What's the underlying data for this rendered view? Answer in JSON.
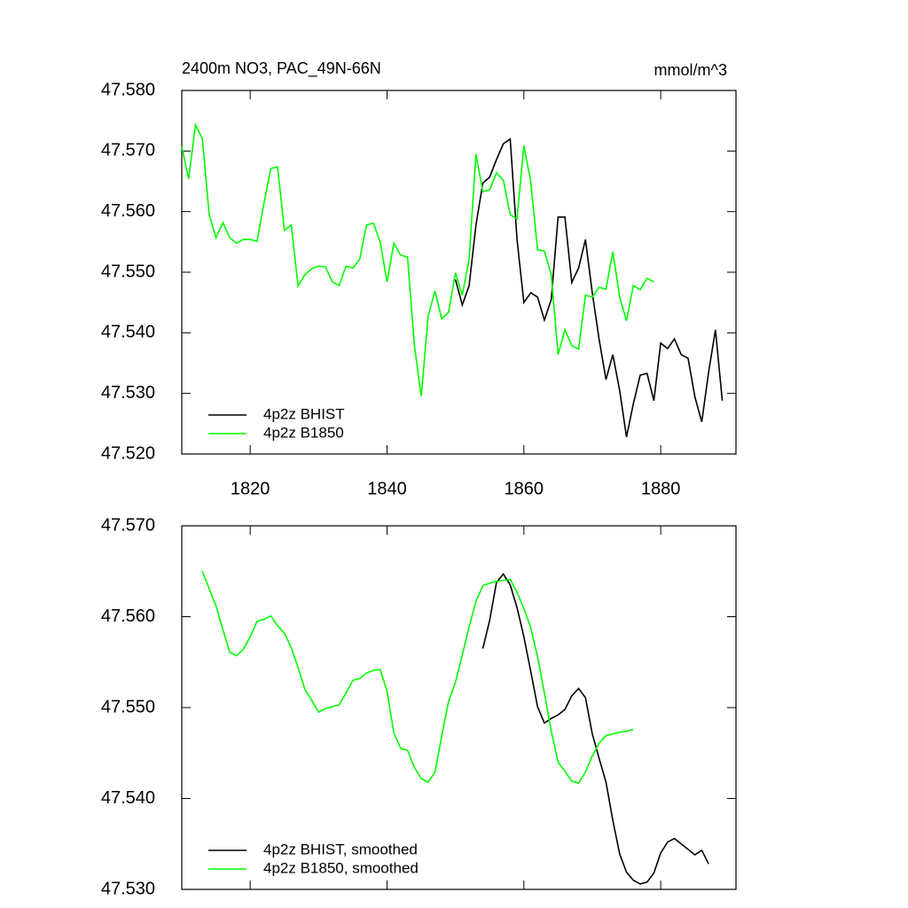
{
  "chart_data": [
    {
      "type": "line",
      "title": "2400m NO3, PAC_49N-66N",
      "units": "mmol/m^3",
      "legend": "lower left",
      "x": [
        1810,
        1811,
        1812,
        1813,
        1814,
        1815,
        1816,
        1817,
        1818,
        1819,
        1820,
        1821,
        1822,
        1823,
        1824,
        1825,
        1826,
        1827,
        1828,
        1829,
        1830,
        1831,
        1832,
        1833,
        1834,
        1835,
        1836,
        1837,
        1838,
        1839,
        1840,
        1841,
        1842,
        1843,
        1844,
        1845,
        1846,
        1847,
        1848,
        1849,
        1850,
        1851,
        1852,
        1853,
        1854,
        1855,
        1856,
        1857,
        1858,
        1859,
        1860,
        1861,
        1862,
        1863,
        1864,
        1865,
        1866,
        1867,
        1868,
        1869,
        1870,
        1871,
        1872,
        1873,
        1874,
        1875,
        1876,
        1877,
        1878,
        1879,
        1880,
        1881,
        1882,
        1883,
        1884,
        1885,
        1886,
        1887,
        1888,
        1889
      ],
      "xlim": [
        1810,
        1891
      ],
      "xticks": [
        1820,
        1840,
        1860,
        1880
      ],
      "ylim": [
        47.52,
        47.58
      ],
      "yticks": [
        {
          "value": 47.52,
          "label": "47.520"
        },
        {
          "value": 47.53,
          "label": "47.530"
        },
        {
          "value": 47.54,
          "label": "47.540"
        },
        {
          "value": 47.55,
          "label": "47.550"
        },
        {
          "value": 47.56,
          "label": "47.560"
        },
        {
          "value": 47.57,
          "label": "47.570"
        },
        {
          "value": 47.58,
          "label": "47.580"
        }
      ],
      "series": [
        {
          "name": "4p2z BHIST",
          "color": "#000000",
          "values": [
            null,
            null,
            null,
            null,
            null,
            null,
            null,
            null,
            null,
            null,
            null,
            null,
            null,
            null,
            null,
            null,
            null,
            null,
            null,
            null,
            null,
            null,
            null,
            null,
            null,
            null,
            null,
            null,
            null,
            null,
            null,
            null,
            null,
            null,
            null,
            null,
            null,
            null,
            null,
            null,
            47.5488,
            47.5446,
            47.5478,
            47.5578,
            47.5647,
            47.5657,
            47.5686,
            47.5712,
            47.572,
            47.5554,
            47.545,
            47.5466,
            47.5459,
            47.5421,
            47.5455,
            47.5591,
            47.5591,
            47.5483,
            47.5507,
            47.5554,
            47.5466,
            47.5389,
            47.5323,
            47.5364,
            47.5305,
            47.5228,
            47.5283,
            47.533,
            47.5333,
            47.5288,
            47.5383,
            47.5374,
            47.539,
            47.5364,
            47.5358,
            47.5294,
            47.5253,
            47.5335,
            47.5405,
            47.5288
          ]
        },
        {
          "name": "4p2z B1850",
          "color": "#00ff00",
          "values": [
            47.5707,
            47.5654,
            47.5743,
            47.5721,
            47.5595,
            47.5557,
            47.5582,
            47.5557,
            47.5548,
            47.5554,
            47.5554,
            47.5551,
            47.5613,
            47.5671,
            47.5674,
            47.5569,
            47.5578,
            47.5477,
            47.5496,
            47.5506,
            47.551,
            47.5509,
            47.5484,
            47.5478,
            47.551,
            47.5507,
            47.5521,
            47.5578,
            47.5581,
            47.555,
            47.5484,
            47.5548,
            47.5528,
            47.5525,
            47.5379,
            47.5295,
            47.5427,
            47.5469,
            47.5423,
            47.5434,
            47.5499,
            47.5462,
            47.5522,
            47.5695,
            47.5633,
            47.5636,
            47.5664,
            47.5652,
            47.5595,
            47.5588,
            47.5709,
            47.565,
            47.5537,
            47.5535,
            47.5496,
            47.5364,
            47.5405,
            47.5379,
            47.5373,
            47.5462,
            47.5459,
            47.5475,
            47.5472,
            47.5534,
            47.5459,
            47.542,
            47.5478,
            47.5471,
            47.549,
            47.5484,
            null,
            null,
            null,
            null,
            null,
            null,
            null,
            null,
            null,
            null
          ]
        }
      ]
    },
    {
      "type": "line",
      "legend": "lower left",
      "x": [
        1813,
        1814,
        1815,
        1816,
        1817,
        1818,
        1819,
        1820,
        1821,
        1822,
        1823,
        1824,
        1825,
        1826,
        1827,
        1828,
        1829,
        1830,
        1831,
        1832,
        1833,
        1834,
        1835,
        1836,
        1837,
        1838,
        1839,
        1840,
        1841,
        1842,
        1843,
        1844,
        1845,
        1846,
        1847,
        1848,
        1849,
        1850,
        1851,
        1852,
        1853,
        1854,
        1855,
        1856,
        1857,
        1858,
        1859,
        1860,
        1861,
        1862,
        1863,
        1864,
        1865,
        1866,
        1867,
        1868,
        1869,
        1870,
        1871,
        1872,
        1873,
        1874,
        1875,
        1876,
        1877,
        1878,
        1879,
        1880,
        1881,
        1882,
        1883,
        1884,
        1885,
        1886,
        1887
      ],
      "xlim": [
        1810,
        1891
      ],
      "xticks": [
        1820,
        1840,
        1860,
        1880
      ],
      "ylim": [
        47.53,
        47.57
      ],
      "yticks": [
        {
          "value": 47.53,
          "label": "47.530"
        },
        {
          "value": 47.54,
          "label": "47.540"
        },
        {
          "value": 47.55,
          "label": "47.550"
        },
        {
          "value": 47.56,
          "label": "47.560"
        },
        {
          "value": 47.57,
          "label": "47.570"
        }
      ],
      "series": [
        {
          "name": "4p2z BHIST, smoothed",
          "color": "#000000",
          "values": [
            null,
            null,
            null,
            null,
            null,
            null,
            null,
            null,
            null,
            null,
            null,
            null,
            null,
            null,
            null,
            null,
            null,
            null,
            null,
            null,
            null,
            null,
            null,
            null,
            null,
            null,
            null,
            null,
            null,
            null,
            null,
            null,
            null,
            null,
            null,
            null,
            null,
            null,
            null,
            null,
            null,
            47.5565,
            47.5596,
            47.5638,
            47.5647,
            47.5635,
            47.561,
            47.5578,
            47.554,
            47.5501,
            47.5483,
            47.5488,
            47.5492,
            47.5498,
            47.5513,
            47.5521,
            47.5511,
            47.5471,
            47.5444,
            47.5418,
            47.5376,
            47.5339,
            47.5319,
            47.531,
            47.5306,
            47.5308,
            47.5318,
            47.534,
            47.5352,
            47.5356,
            47.535,
            47.5344,
            47.5338,
            47.5343,
            47.5328
          ]
        },
        {
          "name": "4p2z B1850, smoothed",
          "color": "#00ff00",
          "values": [
            47.565,
            47.5631,
            47.5612,
            47.5586,
            47.5561,
            47.5557,
            47.5564,
            47.5578,
            47.5595,
            47.5597,
            47.5601,
            47.559,
            47.5582,
            47.5566,
            47.5544,
            47.552,
            47.5508,
            47.5495,
            47.5499,
            47.5501,
            47.5503,
            47.5516,
            47.553,
            47.5532,
            47.5538,
            47.5541,
            47.5542,
            47.5518,
            47.5472,
            47.5455,
            47.5453,
            47.5434,
            47.5422,
            47.5418,
            47.5429,
            47.5469,
            47.5507,
            47.5528,
            47.5558,
            47.5589,
            47.5617,
            47.5634,
            47.5637,
            47.5639,
            47.564,
            47.5641,
            47.5627,
            47.5609,
            47.5588,
            47.5556,
            47.5516,
            47.5474,
            47.544,
            47.543,
            47.5419,
            47.5417,
            47.5429,
            47.5447,
            47.5461,
            47.5469,
            47.5471,
            47.5473,
            47.5474,
            47.5476,
            null,
            null,
            null,
            null,
            null,
            null,
            null,
            null,
            null,
            null,
            null
          ]
        }
      ]
    }
  ]
}
